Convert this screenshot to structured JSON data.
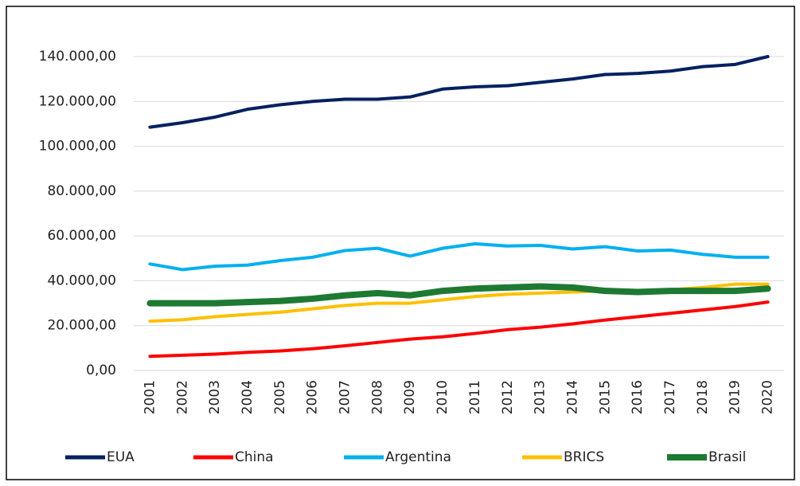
{
  "chart_data": {
    "type": "line",
    "categories": [
      "2001",
      "2002",
      "2003",
      "2004",
      "2005",
      "2006",
      "2007",
      "2008",
      "2009",
      "2010",
      "2011",
      "2012",
      "2013",
      "2014",
      "2015",
      "2016",
      "2017",
      "2018",
      "2019",
      "2020"
    ],
    "series": [
      {
        "name": "EUA",
        "color": "#002060",
        "values": [
          108500,
          110500,
          113000,
          116500,
          118500,
          120000,
          121000,
          121000,
          122000,
          125500,
          126500,
          127000,
          128500,
          130000,
          132000,
          132500,
          133500,
          135500,
          136500,
          140000
        ]
      },
      {
        "name": "China",
        "color": "#ff0000",
        "values": [
          6300,
          6800,
          7300,
          8100,
          8700,
          9700,
          11000,
          12500,
          14000,
          15000,
          16500,
          18200,
          19300,
          20800,
          22500,
          24000,
          25500,
          27000,
          28500,
          30500
        ]
      },
      {
        "name": "Argentina",
        "color": "#00b0f0",
        "values": [
          47500,
          45000,
          46500,
          47000,
          49000,
          50500,
          53500,
          54500,
          51000,
          54500,
          56500,
          55500,
          55800,
          54200,
          55200,
          53300,
          53700,
          51800,
          50500,
          50500
        ]
      },
      {
        "name": "BRICS",
        "color": "#ffc000",
        "values": [
          22000,
          22600,
          24000,
          25000,
          26000,
          27500,
          29000,
          30000,
          30000,
          31500,
          33000,
          34000,
          34500,
          35000,
          35500,
          35500,
          36000,
          37000,
          38500,
          38500
        ]
      },
      {
        "name": "Brasil",
        "color": "#1e7a32",
        "values": [
          30000,
          30000,
          30000,
          30500,
          31000,
          32000,
          33500,
          34500,
          33500,
          35500,
          36500,
          37000,
          37500,
          37000,
          35500,
          35000,
          35500,
          35500,
          35500,
          36500
        ]
      }
    ],
    "ylim": [
      0,
      150000
    ],
    "yticks": [
      {
        "value": 0,
        "label": "0,00"
      },
      {
        "value": 20000,
        "label": "20.000,00"
      },
      {
        "value": 40000,
        "label": "40.000,00"
      },
      {
        "value": 60000,
        "label": "60.000,00"
      },
      {
        "value": 80000,
        "label": "80.000,00"
      },
      {
        "value": 100000,
        "label": "100.000,00"
      },
      {
        "value": 120000,
        "label": "120.000,00"
      },
      {
        "value": 140000,
        "label": "140.000,00"
      }
    ],
    "grid": true,
    "legend": "bottom"
  }
}
